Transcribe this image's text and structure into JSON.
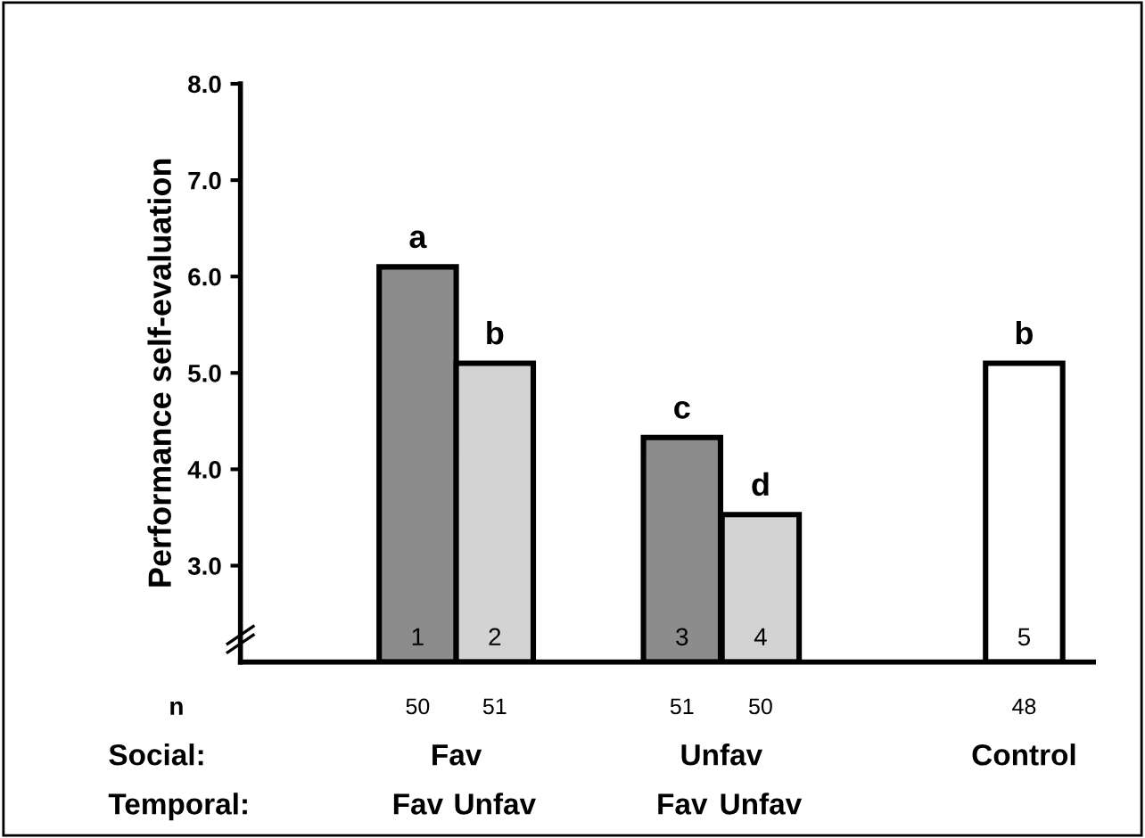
{
  "chart_data": {
    "type": "bar",
    "ylabel": "Performance self-evaluation",
    "categories": [
      "1",
      "2",
      "3",
      "4",
      "5"
    ],
    "values": [
      6.1,
      5.1,
      4.33,
      3.53,
      5.1
    ],
    "colors": [
      "#8c8c8c",
      "#d3d3d3",
      "#8c8c8c",
      "#d3d3d3",
      "#ffffff"
    ],
    "ylim": [
      2.0,
      8.0
    ],
    "yticks": [
      {
        "value": 3,
        "label": "3.0"
      },
      {
        "value": 4,
        "label": "4.0"
      },
      {
        "value": 5,
        "label": "5.0"
      },
      {
        "value": 6,
        "label": "6.0"
      },
      {
        "value": 7,
        "label": "7.0"
      },
      {
        "value": 8,
        "label": "8.0"
      }
    ],
    "grid": false,
    "legend": false,
    "annotations": [
      {
        "text": "a",
        "x": "1",
        "y": 6.1
      },
      {
        "text": "b",
        "x": "2",
        "y": 5.1
      },
      {
        "text": "c",
        "x": "3",
        "y": 4.33
      },
      {
        "text": "d",
        "x": "4",
        "y": 3.53
      },
      {
        "text": "b",
        "x": "5",
        "y": 5.1
      },
      "n",
      "50",
      "51",
      "51",
      "50",
      "48",
      "Social:",
      "Fav",
      "Unfav",
      "Control",
      "Temporal:",
      "Fav",
      "Unfav",
      "Fav",
      "Unfav"
    ]
  }
}
